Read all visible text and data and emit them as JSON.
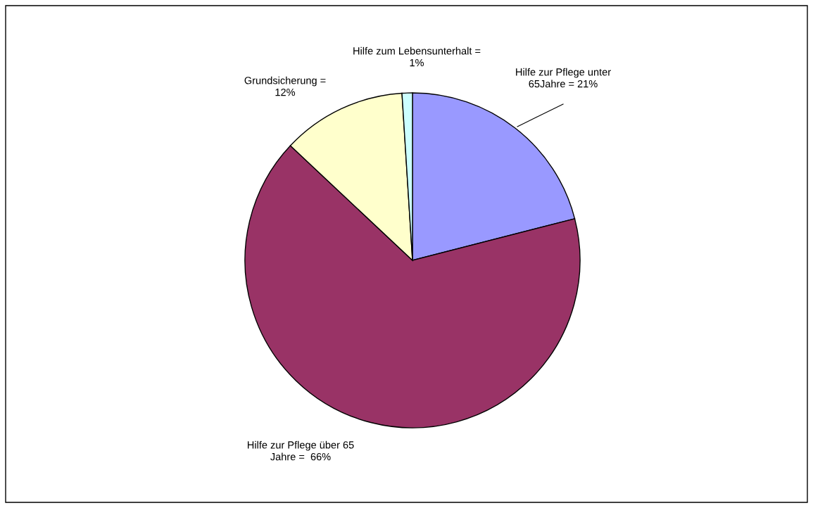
{
  "chart_data": {
    "type": "pie",
    "categories": [
      "Hilfe zur Pflege unter\n65Jahre = 21%",
      "Hilfe zur Pflege über 65\nJahre =  66%",
      "Grundsicherung =\n12%",
      "Hilfe zum Lebensunterhalt =\n1%"
    ],
    "values": [
      21,
      66,
      12,
      1
    ],
    "colors": [
      "#9999ff",
      "#993366",
      "#ffffcc",
      "#ccffff"
    ],
    "legend": false
  }
}
